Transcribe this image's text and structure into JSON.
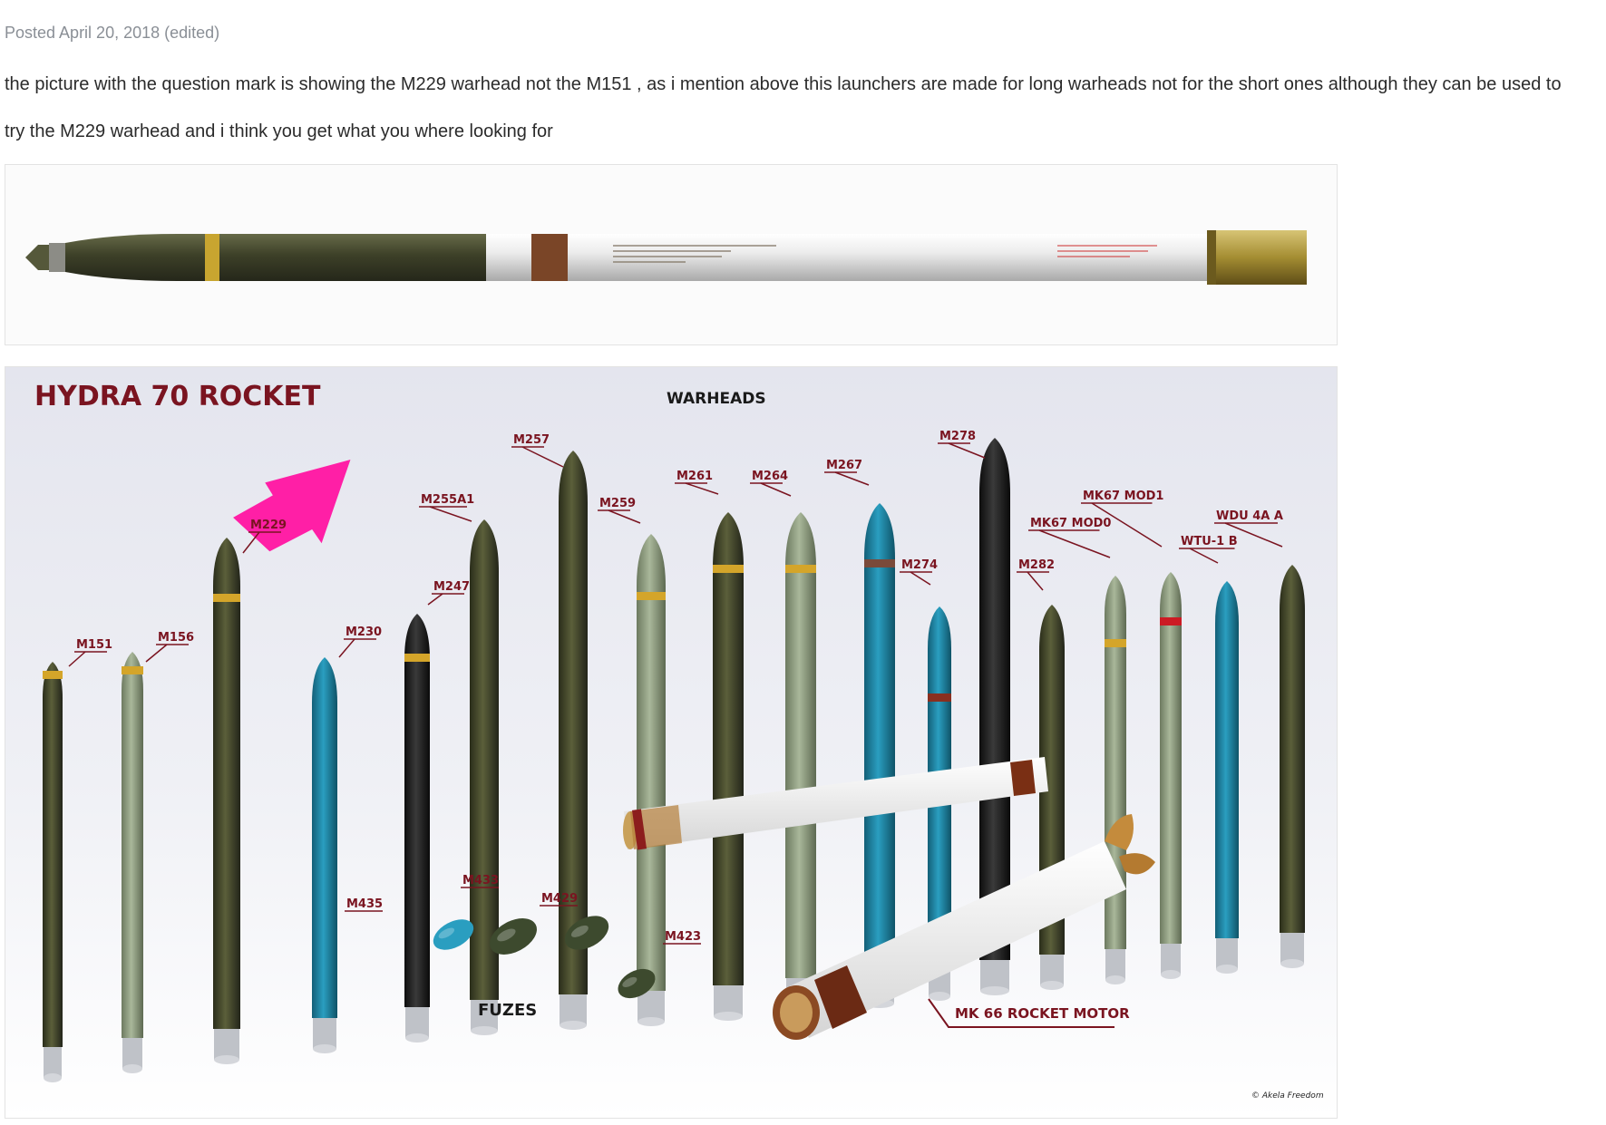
{
  "post": {
    "meta": "Posted April 20, 2018 (edited)",
    "paragraph_1": "the picture with the question mark is showing the M229 warhead not the M151 , as i mention above this launchers are made for long warheads not for the short ones although they can be used to",
    "paragraph_2": "try the M229 warhead and i think you get what you where looking for"
  },
  "image1": {
    "alt_icon": "rocket-profile-illustration"
  },
  "image2": {
    "title": "HYDRA 70 ROCKET",
    "warheads_label": "WARHEADS",
    "fuzes_label": "FUZES",
    "motor_label": "MK 66 ROCKET MOTOR",
    "credit": "© Akela Freedom",
    "warheads": [
      "M151",
      "M156",
      "M229",
      "M230",
      "M247",
      "M255A1",
      "M257",
      "M259",
      "M261",
      "M264",
      "M267",
      "M274",
      "M278",
      "M282",
      "MK67 MOD0",
      "MK67 MOD1",
      "WTU-1 B",
      "WDU 4A A"
    ],
    "fuzes": [
      "M435",
      "M433",
      "M429",
      "M423"
    ],
    "colors": {
      "label_red": "#7a1420",
      "arrow_pink": "#ff1fa6",
      "olive": "#3f4328",
      "sage": "#93a283",
      "teal": "#1f89a8",
      "black": "#1b1b1b"
    }
  }
}
